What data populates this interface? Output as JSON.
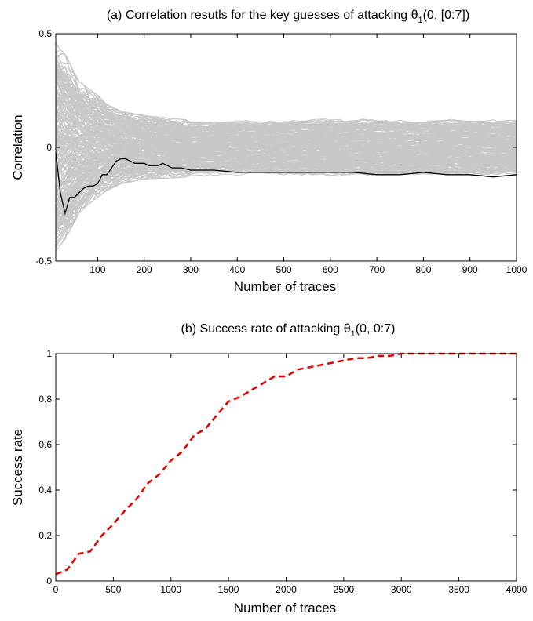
{
  "chart_data": [
    {
      "type": "line",
      "title_prefix": "(a) Correlation resutls for the key guesses of attacking θ",
      "title_subscript": "1",
      "title_suffix": "(0, [0:7])",
      "xlabel": "Number of traces",
      "ylabel": "Correlation",
      "xlim": [
        10,
        1000
      ],
      "ylim": [
        -0.5,
        0.5
      ],
      "xticks": [
        100,
        200,
        300,
        400,
        500,
        600,
        700,
        800,
        900,
        1000
      ],
      "yticks": [
        -0.5,
        0,
        0.5
      ],
      "grid": false,
      "colors": {
        "wrong_guesses": "#c8c8c8",
        "correct_key": "#000000"
      },
      "wrong_guesses_envelope": {
        "x": [
          10,
          20,
          30,
          40,
          50,
          60,
          80,
          100,
          120,
          150,
          200,
          300,
          500,
          700,
          1000
        ],
        "upper": [
          0.45,
          0.42,
          0.4,
          0.36,
          0.32,
          0.28,
          0.25,
          0.22,
          0.18,
          0.15,
          0.13,
          0.11,
          0.12,
          0.12,
          0.12
        ],
        "lower": [
          -0.45,
          -0.42,
          -0.4,
          -0.36,
          -0.32,
          -0.28,
          -0.24,
          -0.21,
          -0.18,
          -0.15,
          -0.13,
          -0.12,
          -0.12,
          -0.12,
          -0.12
        ]
      },
      "correct_key": {
        "x": [
          10,
          20,
          30,
          40,
          50,
          60,
          70,
          80,
          90,
          100,
          110,
          120,
          130,
          140,
          150,
          160,
          170,
          180,
          190,
          200,
          210,
          220,
          230,
          240,
          250,
          260,
          270,
          280,
          300,
          350,
          400,
          450,
          500,
          550,
          600,
          650,
          700,
          750,
          800,
          850,
          900,
          950,
          1000
        ],
        "y": [
          -0.02,
          -0.2,
          -0.29,
          -0.22,
          -0.22,
          -0.2,
          -0.18,
          -0.17,
          -0.17,
          -0.16,
          -0.12,
          -0.12,
          -0.09,
          -0.06,
          -0.05,
          -0.05,
          -0.06,
          -0.07,
          -0.07,
          -0.07,
          -0.08,
          -0.08,
          -0.08,
          -0.07,
          -0.08,
          -0.09,
          -0.09,
          -0.09,
          -0.1,
          -0.1,
          -0.11,
          -0.11,
          -0.11,
          -0.11,
          -0.11,
          -0.11,
          -0.12,
          -0.12,
          -0.11,
          -0.12,
          -0.12,
          -0.13,
          -0.12
        ]
      }
    },
    {
      "type": "line",
      "title_prefix": "(b) Success rate of attacking θ",
      "title_subscript": "1",
      "title_suffix": "(0, 0:7)",
      "xlabel": "Number of traces",
      "ylabel": "Success rate",
      "xlim": [
        0,
        4000
      ],
      "ylim": [
        0,
        1
      ],
      "xticks": [
        0,
        500,
        1000,
        1500,
        2000,
        2500,
        3000,
        3500,
        4000
      ],
      "yticks": [
        0,
        0.2,
        0.4,
        0.6,
        0.8,
        1
      ],
      "grid": false,
      "colors": {
        "line": "#e30000"
      },
      "series": [
        {
          "x": [
            0,
            100,
            200,
            300,
            400,
            500,
            600,
            700,
            800,
            900,
            1000,
            1100,
            1200,
            1300,
            1400,
            1500,
            1600,
            1700,
            1800,
            1900,
            2000,
            2100,
            2200,
            2300,
            2400,
            2500,
            2600,
            2700,
            2800,
            2900,
            3000,
            3100,
            3200,
            3300,
            3400,
            3500,
            3600,
            3700,
            3800,
            3900,
            4000
          ],
          "values": [
            0.03,
            0.05,
            0.12,
            0.13,
            0.2,
            0.25,
            0.31,
            0.36,
            0.43,
            0.47,
            0.53,
            0.57,
            0.64,
            0.67,
            0.73,
            0.79,
            0.81,
            0.84,
            0.87,
            0.9,
            0.9,
            0.93,
            0.94,
            0.95,
            0.96,
            0.97,
            0.98,
            0.98,
            0.99,
            0.99,
            1.0,
            1.0,
            1.0,
            1.0,
            1.0,
            1.0,
            1.0,
            1.0,
            1.0,
            1.0,
            1.0
          ]
        }
      ]
    }
  ]
}
